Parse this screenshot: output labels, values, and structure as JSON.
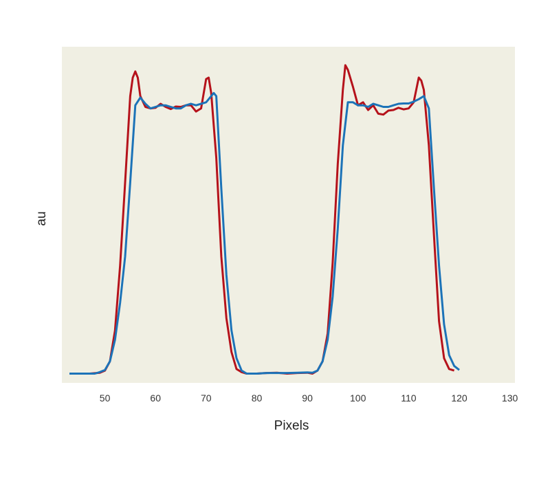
{
  "chart_data": {
    "type": "line",
    "xlabel": "Pixels",
    "ylabel": "au",
    "xlim": [
      41.5,
      131
    ],
    "ylim": [
      -0.03,
      1.06
    ],
    "x_ticks": [
      50,
      60,
      70,
      80,
      90,
      100,
      110,
      120,
      130
    ],
    "y_ticks": [],
    "grid": false,
    "background": "#f0efe3",
    "series": [
      {
        "color": "#b5121b",
        "x": [
          43,
          45,
          47,
          49,
          50,
          51,
          52,
          53,
          54,
          55,
          55.5,
          56,
          56.5,
          57,
          58,
          59,
          60,
          61,
          62,
          63,
          64,
          65,
          66,
          67,
          68,
          69,
          70,
          70.5,
          71,
          72,
          73,
          74,
          75,
          76,
          77,
          78,
          80,
          82,
          84,
          86,
          88,
          90,
          91,
          92,
          93,
          94,
          95,
          96,
          97,
          97.5,
          98,
          99,
          100,
          101,
          102,
          103,
          104,
          105,
          106,
          107,
          108,
          109,
          110,
          111,
          112,
          112.5,
          113,
          114,
          115,
          116,
          117,
          118,
          119
        ],
        "y": [
          0,
          0,
          0,
          0.003,
          0.01,
          0.04,
          0.14,
          0.35,
          0.62,
          0.9,
          0.96,
          0.98,
          0.96,
          0.9,
          0.865,
          0.86,
          0.862,
          0.875,
          0.865,
          0.858,
          0.866,
          0.865,
          0.87,
          0.87,
          0.85,
          0.86,
          0.955,
          0.96,
          0.91,
          0.7,
          0.38,
          0.18,
          0.07,
          0.015,
          0.005,
          0,
          0,
          0.002,
          0.003,
          0,
          0.002,
          0.003,
          0,
          0.01,
          0.04,
          0.13,
          0.36,
          0.68,
          0.92,
          1.0,
          0.985,
          0.93,
          0.87,
          0.88,
          0.855,
          0.87,
          0.843,
          0.84,
          0.853,
          0.855,
          0.862,
          0.857,
          0.86,
          0.88,
          0.96,
          0.95,
          0.92,
          0.74,
          0.45,
          0.17,
          0.05,
          0.015,
          0.01
        ]
      },
      {
        "color": "#1c73b8",
        "x": [
          43,
          45,
          47,
          48,
          49,
          50,
          51,
          52,
          53,
          54,
          55,
          56,
          57,
          58,
          59,
          60,
          61,
          62,
          63,
          64,
          65,
          66,
          67,
          68,
          69,
          70,
          71,
          71.5,
          72,
          73,
          74,
          75,
          76,
          77,
          78,
          80,
          82,
          84,
          86,
          88,
          90,
          91,
          92,
          93,
          94,
          95,
          96,
          97,
          98,
          99,
          100,
          101,
          102,
          103,
          104,
          105,
          106,
          107,
          108,
          109,
          110,
          111,
          112,
          113,
          114,
          115,
          116,
          117,
          118,
          119,
          120
        ],
        "y": [
          0,
          0,
          0,
          0,
          0.005,
          0.012,
          0.04,
          0.11,
          0.23,
          0.38,
          0.62,
          0.87,
          0.895,
          0.875,
          0.86,
          0.865,
          0.87,
          0.87,
          0.865,
          0.86,
          0.86,
          0.87,
          0.875,
          0.87,
          0.875,
          0.88,
          0.9,
          0.91,
          0.9,
          0.6,
          0.32,
          0.14,
          0.05,
          0.01,
          0,
          0,
          0.002,
          0.002,
          0.002,
          0.003,
          0.004,
          0.003,
          0.01,
          0.04,
          0.11,
          0.25,
          0.47,
          0.74,
          0.88,
          0.88,
          0.87,
          0.87,
          0.865,
          0.875,
          0.87,
          0.865,
          0.865,
          0.87,
          0.875,
          0.876,
          0.876,
          0.882,
          0.89,
          0.9,
          0.86,
          0.6,
          0.35,
          0.16,
          0.06,
          0.025,
          0.012
        ]
      }
    ]
  }
}
